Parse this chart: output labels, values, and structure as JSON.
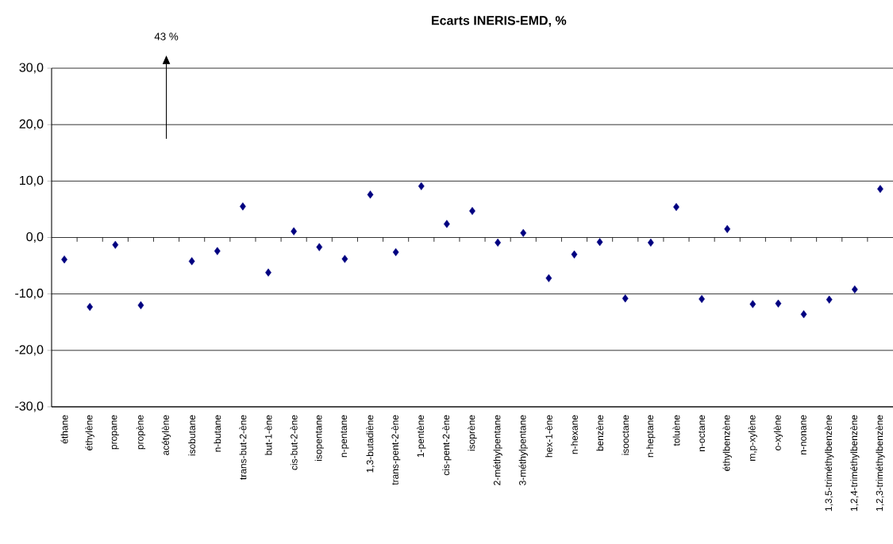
{
  "chart_data": {
    "type": "scatter",
    "title": "Ecarts INERIS-EMD, %",
    "categories": [
      "éthane",
      "éthylène",
      "propane",
      "propène",
      "acétylène",
      "isobutane",
      "n-butane",
      "trans-but-2-ène",
      "but-1-ène",
      "cis-but-2-ène",
      "isopentane",
      "n-pentane",
      "1,3-butadiène",
      "trans-pent-2-ène",
      "1-pentène",
      "cis-pent-2-ène",
      "isoprène",
      "2-méthylpentane",
      "3-méthylpentane",
      "hex-1-ène",
      "n-hexane",
      "benzène",
      "isooctane",
      "n-heptane",
      "toluène",
      "n-octane",
      "éthylbenzène",
      "m,p-xylène",
      "o-xylène",
      "n-nonane",
      "1,3,5-triméthylbenzène",
      "1,2,4-triméthylbenzène",
      "1,2,3-triméthylbenzène"
    ],
    "values": [
      -3.9,
      -12.3,
      -1.3,
      -12.0,
      null,
      -4.2,
      -2.4,
      5.5,
      -6.2,
      1.1,
      -1.7,
      -3.8,
      7.6,
      -2.6,
      9.1,
      2.4,
      4.7,
      -0.9,
      0.8,
      -7.2,
      -3.0,
      -0.8,
      -10.8,
      -0.9,
      5.4,
      -10.9,
      1.5,
      -11.8,
      -11.7,
      -13.6,
      -11.0,
      -9.2,
      8.6
    ],
    "color": "#000080",
    "marker": "diamond",
    "grid": "y",
    "ylim": [
      -30,
      30
    ],
    "yticks": [
      {
        "value": -30,
        "label": "-30,0"
      },
      {
        "value": -20,
        "label": "-20,0"
      },
      {
        "value": -10,
        "label": "-10,0"
      },
      {
        "value": 0,
        "label": "0,0"
      },
      {
        "value": 10,
        "label": "10,0"
      },
      {
        "value": 20,
        "label": "20,0"
      },
      {
        "value": 30,
        "label": "30,0"
      }
    ],
    "annotations": [
      "43 %"
    ]
  }
}
